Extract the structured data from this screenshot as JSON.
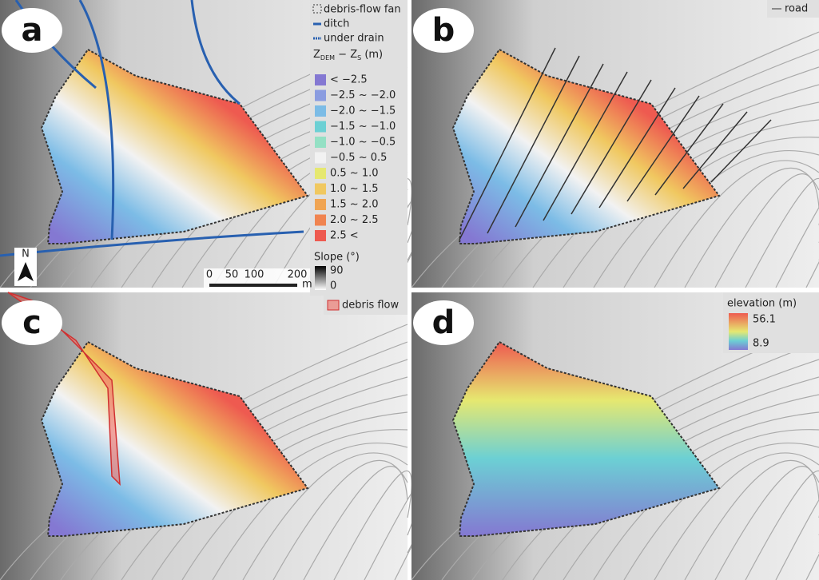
{
  "panels": [
    {
      "label": "a"
    },
    {
      "label": "b"
    },
    {
      "label": "c"
    },
    {
      "label": "d"
    }
  ],
  "legend_a": {
    "debris_fan": "debris-flow fan",
    "ditch": "ditch",
    "under_drain": "under drain",
    "diff_title": {
      "z1": "Z",
      "sub1": "DEM",
      "mid": " − Z",
      "sub2": "S",
      "unit": " (m)"
    },
    "classes": [
      {
        "label": "< −2.5",
        "color": "#8478d2"
      },
      {
        "label": "−2.5 ~ −2.0",
        "color": "#8a9ce0"
      },
      {
        "label": "−2.0 ~ −1.5",
        "color": "#7cbce6"
      },
      {
        "label": "−1.5 ~ −1.0",
        "color": "#6cd0d4"
      },
      {
        "label": "−1.0 ~ −0.5",
        "color": "#94e0c4"
      },
      {
        "label": "−0.5 ~ 0.5",
        "color": "#f2f2f2"
      },
      {
        "label": "0.5 ~ 1.0",
        "color": "#e6e870"
      },
      {
        "label": "1.0 ~ 1.5",
        "color": "#f0c860"
      },
      {
        "label": "1.5 ~ 2.0",
        "color": "#f0a452"
      },
      {
        "label": "2.0 ~ 2.5",
        "color": "#f08450"
      },
      {
        "label": "2.5 <",
        "color": "#ee5a50"
      }
    ],
    "slope_title": "Slope (°)",
    "slope_max": "90",
    "slope_min": "0",
    "north": "N",
    "scale": [
      "0",
      "50",
      "100",
      "200"
    ],
    "scale_unit": "m"
  },
  "legend_b": {
    "road": "road"
  },
  "legend_c": {
    "debris_flow": "debris flow"
  },
  "legend_d": {
    "title": "elevation (m)",
    "max": "56.1",
    "min": "8.9"
  }
}
